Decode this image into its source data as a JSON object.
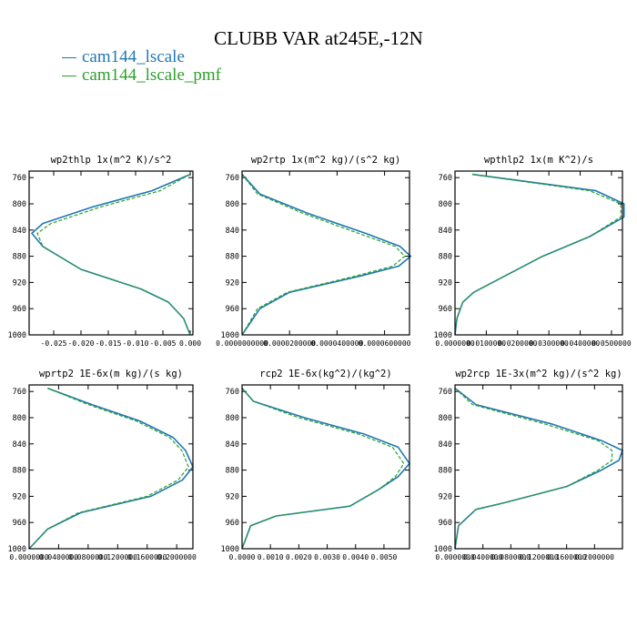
{
  "title": "CLUBB VAR at245E,-12N",
  "legend": [
    {
      "name": "cam144_lscale",
      "color": "#1f77b4"
    },
    {
      "name": "cam144_lscale_pmf",
      "color": "#2ca02c"
    }
  ],
  "chart_data": [
    {
      "type": "line",
      "title": "wp2thlp  1x(m^2 K)/s^2",
      "yticks": [
        "760",
        "800",
        "840",
        "880",
        "920",
        "960",
        "1000"
      ],
      "ylim": [
        1000,
        750
      ],
      "xticks": [
        "-0.025",
        "-0.020",
        "-0.015",
        "-0.010",
        "-0.005",
        "0.000"
      ],
      "xtick_values": [
        -0.025,
        -0.02,
        -0.015,
        -0.01,
        -0.005,
        0.0
      ],
      "xlim": [
        -0.0295,
        0.0005
      ],
      "y": [
        755,
        780,
        805,
        830,
        845,
        865,
        900,
        930,
        950,
        975,
        1000
      ],
      "series": [
        {
          "name": "cam144_lscale",
          "x": [
            0.0,
            -0.007,
            -0.018,
            -0.027,
            -0.029,
            -0.027,
            -0.02,
            -0.009,
            -0.004,
            -0.0012,
            0.0
          ]
        },
        {
          "name": "cam144_lscale_pmf",
          "x": [
            0.0,
            -0.0055,
            -0.0165,
            -0.0255,
            -0.028,
            -0.027,
            -0.02,
            -0.009,
            -0.004,
            -0.0012,
            0.0
          ]
        }
      ]
    },
    {
      "type": "line",
      "title": "wp2rtp  1x(m^2 kg)/(s^2 kg)",
      "yticks": [
        "760",
        "800",
        "840",
        "880",
        "920",
        "960",
        "1000"
      ],
      "ylim": [
        1000,
        750
      ],
      "xticks": [
        "0.0000000000",
        "0.0000200000",
        "0.0000400000",
        "0.0000600000"
      ],
      "xtick_values": [
        0.0,
        2e-05,
        4e-05,
        6e-05
      ],
      "xlim": [
        0.0,
        7.05e-05
      ],
      "y": [
        755,
        785,
        815,
        845,
        865,
        880,
        895,
        910,
        935,
        960,
        1000
      ],
      "series": [
        {
          "name": "cam144_lscale",
          "x": [
            0.0,
            7.5e-06,
            2.8e-05,
            5.2e-05,
            6.65e-05,
            7.1e-05,
            6.6e-05,
            5e-05,
            2e-05,
            7.5e-06,
            0.0
          ]
        },
        {
          "name": "cam144_lscale_pmf",
          "x": [
            0.0,
            6.5e-06,
            2.6e-05,
            4.9e-05,
            6.45e-05,
            6.85e-05,
            6.35e-05,
            4.8e-05,
            1.9e-05,
            6.5e-06,
            0.0
          ]
        }
      ]
    },
    {
      "type": "line",
      "title": "wpthlp2  1x(m K^2)/s",
      "yticks": [
        "760",
        "800",
        "840",
        "880",
        "920",
        "960",
        "1000"
      ],
      "ylim": [
        1000,
        750
      ],
      "xticks": [
        "0.0000000",
        "0.0100000",
        "0.0200000",
        "0.0300000",
        "0.0400000",
        "0.0500000"
      ],
      "xtick_values": [
        0.0,
        0.01,
        0.02,
        0.03,
        0.04,
        0.05
      ],
      "xlim": [
        0.0,
        0.0535
      ],
      "y": [
        755,
        780,
        800,
        820,
        850,
        880,
        910,
        935,
        950,
        975,
        1000
      ],
      "series": [
        {
          "name": "cam144_lscale",
          "x": [
            0.0055,
            0.045,
            0.054,
            0.054,
            0.043,
            0.028,
            0.016,
            0.006,
            0.0025,
            0.0006,
            0.0
          ]
        },
        {
          "name": "cam144_lscale_pmf",
          "x": [
            0.0055,
            0.043,
            0.053,
            0.053,
            0.043,
            0.028,
            0.016,
            0.006,
            0.0025,
            0.0006,
            0.0
          ]
        }
      ]
    },
    {
      "type": "line",
      "title": "wprtp2  1E-6x(m kg)/(s kg)",
      "yticks": [
        "760",
        "800",
        "840",
        "880",
        "920",
        "960",
        "1000"
      ],
      "ylim": [
        1000,
        750
      ],
      "xticks": [
        "0.0000000",
        "0.0400000",
        "0.0800000",
        "0.1200000",
        "0.1600000",
        "0.2000000"
      ],
      "xtick_values": [
        0.0,
        0.04,
        0.08,
        0.12,
        0.16,
        0.2
      ],
      "xlim": [
        0.0,
        0.222
      ],
      "y": [
        755,
        780,
        805,
        830,
        850,
        875,
        895,
        920,
        945,
        970,
        1000
      ],
      "series": [
        {
          "name": "cam144_lscale",
          "x": [
            0.025,
            0.085,
            0.15,
            0.195,
            0.212,
            0.222,
            0.208,
            0.165,
            0.07,
            0.025,
            0.0
          ]
        },
        {
          "name": "cam144_lscale_pmf",
          "x": [
            0.025,
            0.08,
            0.145,
            0.19,
            0.207,
            0.216,
            0.202,
            0.16,
            0.067,
            0.025,
            0.0
          ]
        }
      ]
    },
    {
      "type": "line",
      "title": "rcp2  1E-6x(kg^2)/(kg^2)",
      "yticks": [
        "760",
        "800",
        "840",
        "880",
        "920",
        "960",
        "1000"
      ],
      "ylim": [
        1000,
        750
      ],
      "xticks": [
        "0.0000",
        "0.0010",
        "0.0020",
        "0.0030",
        "0.0040",
        "0.0050"
      ],
      "xtick_values": [
        0.0,
        0.001,
        0.002,
        0.003,
        0.004,
        0.005
      ],
      "xlim": [
        0.0,
        0.0059
      ],
      "y": [
        755,
        775,
        800,
        825,
        845,
        870,
        890,
        910,
        935,
        950,
        965,
        1000
      ],
      "series": [
        {
          "name": "cam144_lscale",
          "x": [
            0.0,
            0.0004,
            0.0022,
            0.0043,
            0.0055,
            0.0059,
            0.0055,
            0.0048,
            0.0038,
            0.0012,
            0.0003,
            0.0
          ]
        },
        {
          "name": "cam144_lscale_pmf",
          "x": [
            0.0,
            0.0004,
            0.002,
            0.0041,
            0.0053,
            0.0057,
            0.0054,
            0.0048,
            0.0038,
            0.0012,
            0.0003,
            0.0
          ]
        }
      ]
    },
    {
      "type": "line",
      "title": "wp2rcp  1E-3x(m^2 kg)/(s^2 kg)",
      "yticks": [
        "760",
        "800",
        "840",
        "880",
        "920",
        "960",
        "1000"
      ],
      "ylim": [
        1000,
        750
      ],
      "xticks": [
        "0.0000000",
        "0.0400000",
        "0.0800000",
        "0.1200000",
        "0.1600000",
        "0.2000000"
      ],
      "xtick_values": [
        0.0,
        0.04,
        0.08,
        0.12,
        0.16,
        0.2
      ],
      "xlim": [
        0.0,
        0.24
      ],
      "y": [
        755,
        780,
        810,
        835,
        850,
        865,
        880,
        905,
        930,
        940,
        965,
        1000
      ],
      "series": [
        {
          "name": "cam144_lscale",
          "x": [
            0.0,
            0.03,
            0.14,
            0.21,
            0.24,
            0.235,
            0.21,
            0.16,
            0.07,
            0.03,
            0.005,
            0.0
          ]
        },
        {
          "name": "cam144_lscale_pmf",
          "x": [
            0.0,
            0.025,
            0.13,
            0.205,
            0.225,
            0.225,
            0.205,
            0.16,
            0.07,
            0.03,
            0.005,
            0.0
          ]
        }
      ]
    }
  ]
}
